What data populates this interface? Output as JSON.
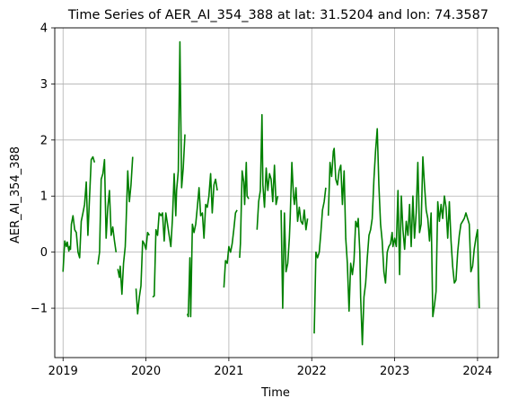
{
  "chart_data": {
    "type": "line",
    "title": "Time Series of AER_AI_354_388 at lat: 31.5204 and lon: 74.3587",
    "xlabel": "Time",
    "ylabel": "AER_AI_354_388",
    "xlim": [
      2018.9,
      2024.25
    ],
    "ylim": [
      -1.88,
      4.0
    ],
    "xticks": [
      2019,
      2020,
      2021,
      2022,
      2023,
      2024
    ],
    "yticks": [
      -1,
      0,
      1,
      2,
      3,
      4
    ],
    "xtick_labels": [
      "2019",
      "2020",
      "2021",
      "2022",
      "2023",
      "2024"
    ],
    "ytick_labels": [
      "−1",
      "0",
      "1",
      "2",
      "3",
      "4"
    ],
    "grid": true,
    "series": [
      {
        "color": "#008000",
        "segments": [
          [
            [
              2019.0,
              -0.35
            ],
            [
              2019.02,
              0.2
            ],
            [
              2019.04,
              0.1
            ],
            [
              2019.05,
              0.18
            ],
            [
              2019.07,
              0.02
            ],
            [
              2019.08,
              0.1
            ],
            [
              2019.09,
              0.05
            ],
            [
              2019.1,
              0.5
            ],
            [
              2019.12,
              0.65
            ],
            [
              2019.14,
              0.4
            ],
            [
              2019.16,
              0.35
            ],
            [
              2019.18,
              0.0
            ],
            [
              2019.2,
              -0.1
            ],
            [
              2019.22,
              0.55
            ],
            [
              2019.24,
              0.7
            ],
            [
              2019.26,
              0.85
            ],
            [
              2019.28,
              1.25
            ],
            [
              2019.3,
              0.3
            ],
            [
              2019.32,
              1.0
            ],
            [
              2019.34,
              1.65
            ],
            [
              2019.36,
              1.7
            ],
            [
              2019.38,
              1.6
            ]
          ],
          [
            [
              2019.42,
              -0.22
            ],
            [
              2019.44,
              0.0
            ],
            [
              2019.46,
              1.3
            ],
            [
              2019.48,
              1.4
            ],
            [
              2019.5,
              1.65
            ],
            [
              2019.52,
              0.25
            ],
            [
              2019.54,
              0.8
            ],
            [
              2019.56,
              1.1
            ],
            [
              2019.58,
              0.3
            ],
            [
              2019.6,
              0.45
            ],
            [
              2019.62,
              0.2
            ],
            [
              2019.64,
              0.0
            ]
          ],
          [
            [
              2019.66,
              -0.3
            ],
            [
              2019.68,
              -0.45
            ],
            [
              2019.69,
              -0.25
            ],
            [
              2019.71,
              -0.75
            ],
            [
              2019.73,
              -0.2
            ],
            [
              2019.75,
              0.1
            ],
            [
              2019.76,
              0.5
            ],
            [
              2019.78,
              1.45
            ],
            [
              2019.8,
              0.9
            ],
            [
              2019.82,
              1.2
            ],
            [
              2019.84,
              1.7
            ]
          ],
          [
            [
              2019.88,
              -0.65
            ],
            [
              2019.9,
              -1.1
            ],
            [
              2019.92,
              -0.8
            ],
            [
              2019.94,
              -0.6
            ],
            [
              2019.96,
              0.2
            ],
            [
              2019.98,
              0.15
            ],
            [
              2020.0,
              0.05
            ],
            [
              2020.02,
              0.35
            ],
            [
              2020.04,
              0.3
            ]
          ],
          [
            [
              2020.08,
              -0.8
            ],
            [
              2020.1,
              -0.78
            ],
            [
              2020.12,
              0.4
            ],
            [
              2020.14,
              0.3
            ],
            [
              2020.16,
              0.7
            ],
            [
              2020.18,
              0.65
            ],
            [
              2020.2,
              0.7
            ],
            [
              2020.22,
              0.2
            ],
            [
              2020.24,
              0.7
            ],
            [
              2020.26,
              0.5
            ],
            [
              2020.28,
              0.3
            ],
            [
              2020.3,
              0.1
            ],
            [
              2020.32,
              0.6
            ],
            [
              2020.34,
              1.4
            ],
            [
              2020.36,
              0.65
            ],
            [
              2020.37,
              1.1
            ],
            [
              2020.39,
              1.45
            ],
            [
              2020.41,
              3.75
            ],
            [
              2020.43,
              1.15
            ],
            [
              2020.45,
              1.5
            ],
            [
              2020.47,
              2.1
            ]
          ],
          [
            [
              2020.5,
              -1.1
            ],
            [
              2020.51,
              -1.15
            ],
            [
              2020.53,
              -0.1
            ],
            [
              2020.54,
              -1.15
            ],
            [
              2020.56,
              0.5
            ],
            [
              2020.58,
              0.35
            ],
            [
              2020.6,
              0.5
            ],
            [
              2020.62,
              0.8
            ],
            [
              2020.64,
              1.15
            ],
            [
              2020.66,
              0.65
            ],
            [
              2020.68,
              0.7
            ],
            [
              2020.7,
              0.25
            ],
            [
              2020.72,
              0.85
            ],
            [
              2020.74,
              0.8
            ],
            [
              2020.76,
              1.0
            ],
            [
              2020.78,
              1.4
            ],
            [
              2020.8,
              0.7
            ],
            [
              2020.82,
              1.2
            ],
            [
              2020.84,
              1.3
            ],
            [
              2020.86,
              1.1
            ]
          ],
          [
            [
              2020.94,
              -0.63
            ],
            [
              2020.96,
              -0.15
            ],
            [
              2020.98,
              -0.2
            ],
            [
              2021.0,
              0.1
            ],
            [
              2021.02,
              0.0
            ],
            [
              2021.04,
              0.15
            ],
            [
              2021.06,
              0.4
            ],
            [
              2021.08,
              0.7
            ],
            [
              2021.1,
              0.75
            ]
          ],
          [
            [
              2021.13,
              -0.1
            ],
            [
              2021.14,
              0.15
            ],
            [
              2021.16,
              1.45
            ],
            [
              2021.18,
              1.25
            ],
            [
              2021.19,
              0.85
            ],
            [
              2021.21,
              1.6
            ],
            [
              2021.22,
              1.0
            ],
            [
              2021.24,
              0.95
            ]
          ],
          [
            [
              2021.34,
              0.4
            ],
            [
              2021.36,
              0.9
            ],
            [
              2021.38,
              1.1
            ],
            [
              2021.4,
              2.45
            ],
            [
              2021.41,
              1.2
            ],
            [
              2021.43,
              0.8
            ],
            [
              2021.45,
              1.5
            ],
            [
              2021.47,
              1.1
            ],
            [
              2021.49,
              1.4
            ],
            [
              2021.51,
              1.3
            ],
            [
              2021.53,
              0.9
            ],
            [
              2021.55,
              1.55
            ],
            [
              2021.57,
              0.85
            ],
            [
              2021.59,
              1.0
            ]
          ],
          [
            [
              2021.63,
              0.75
            ],
            [
              2021.65,
              -1.0
            ],
            [
              2021.67,
              0.7
            ],
            [
              2021.69,
              -0.35
            ],
            [
              2021.71,
              -0.2
            ],
            [
              2021.73,
              0.25
            ],
            [
              2021.74,
              0.6
            ],
            [
              2021.76,
              1.6
            ],
            [
              2021.78,
              1.0
            ],
            [
              2021.79,
              0.85
            ],
            [
              2021.81,
              1.15
            ],
            [
              2021.83,
              0.55
            ],
            [
              2021.85,
              0.8
            ],
            [
              2021.87,
              0.55
            ],
            [
              2021.89,
              0.5
            ],
            [
              2021.91,
              0.75
            ],
            [
              2021.93,
              0.4
            ],
            [
              2021.95,
              0.6
            ]
          ],
          [
            [
              2022.03,
              -1.45
            ],
            [
              2022.05,
              0.0
            ],
            [
              2022.07,
              -0.1
            ],
            [
              2022.09,
              0.0
            ],
            [
              2022.11,
              0.35
            ],
            [
              2022.13,
              0.75
            ],
            [
              2022.15,
              0.9
            ],
            [
              2022.17,
              1.15
            ]
          ],
          [
            [
              2022.2,
              0.65
            ],
            [
              2022.22,
              1.6
            ],
            [
              2022.24,
              1.35
            ],
            [
              2022.26,
              1.8
            ],
            [
              2022.27,
              1.85
            ],
            [
              2022.29,
              1.3
            ],
            [
              2022.31,
              1.2
            ],
            [
              2022.33,
              1.45
            ],
            [
              2022.35,
              1.55
            ],
            [
              2022.37,
              0.85
            ],
            [
              2022.39,
              1.45
            ],
            [
              2022.41,
              0.25
            ],
            [
              2022.43,
              -0.2
            ],
            [
              2022.45,
              -1.05
            ],
            [
              2022.47,
              -0.2
            ],
            [
              2022.49,
              -0.4
            ],
            [
              2022.51,
              -0.15
            ],
            [
              2022.53,
              0.55
            ],
            [
              2022.55,
              0.45
            ],
            [
              2022.56,
              0.6
            ],
            [
              2022.58,
              0.0
            ],
            [
              2022.59,
              -0.8
            ],
            [
              2022.61,
              -1.65
            ],
            [
              2022.63,
              -0.8
            ],
            [
              2022.65,
              -0.55
            ],
            [
              2022.67,
              -0.1
            ],
            [
              2022.69,
              0.3
            ],
            [
              2022.71,
              0.4
            ],
            [
              2022.73,
              0.6
            ],
            [
              2022.75,
              1.3
            ],
            [
              2022.77,
              1.8
            ],
            [
              2022.79,
              2.2
            ],
            [
              2022.81,
              1.2
            ],
            [
              2022.83,
              0.5
            ],
            [
              2022.85,
              0.2
            ],
            [
              2022.87,
              -0.35
            ],
            [
              2022.89,
              -0.55
            ],
            [
              2022.91,
              0.0
            ],
            [
              2022.93,
              0.1
            ],
            [
              2022.95,
              0.15
            ],
            [
              2022.97,
              0.35
            ],
            [
              2022.98,
              0.1
            ],
            [
              2023.0,
              0.25
            ],
            [
              2023.02,
              0.1
            ],
            [
              2023.04,
              1.1
            ],
            [
              2023.06,
              -0.4
            ],
            [
              2023.08,
              1.0
            ],
            [
              2023.1,
              0.4
            ],
            [
              2023.12,
              0.05
            ],
            [
              2023.14,
              0.55
            ],
            [
              2023.16,
              0.3
            ],
            [
              2023.18,
              0.85
            ],
            [
              2023.2,
              0.1
            ],
            [
              2023.22,
              1.0
            ],
            [
              2023.24,
              0.25
            ],
            [
              2023.26,
              0.7
            ],
            [
              2023.28,
              1.6
            ],
            [
              2023.3,
              0.35
            ],
            [
              2023.32,
              0.5
            ],
            [
              2023.34,
              1.7
            ],
            [
              2023.36,
              1.2
            ],
            [
              2023.38,
              0.75
            ],
            [
              2023.4,
              0.6
            ],
            [
              2023.42,
              0.2
            ],
            [
              2023.44,
              0.7
            ],
            [
              2023.46,
              -1.15
            ],
            [
              2023.48,
              -0.95
            ],
            [
              2023.5,
              -0.7
            ],
            [
              2023.52,
              0.9
            ],
            [
              2023.54,
              0.55
            ],
            [
              2023.56,
              0.85
            ],
            [
              2023.58,
              0.6
            ],
            [
              2023.6,
              1.0
            ],
            [
              2023.62,
              0.8
            ],
            [
              2023.64,
              0.25
            ],
            [
              2023.66,
              0.9
            ],
            [
              2023.68,
              0.2
            ],
            [
              2023.7,
              -0.25
            ],
            [
              2023.72,
              -0.55
            ],
            [
              2023.74,
              -0.5
            ],
            [
              2023.76,
              0.0
            ],
            [
              2023.78,
              0.3
            ],
            [
              2023.8,
              0.5
            ],
            [
              2023.82,
              0.55
            ],
            [
              2023.84,
              0.6
            ],
            [
              2023.86,
              0.7
            ],
            [
              2023.88,
              0.6
            ],
            [
              2023.9,
              0.5
            ],
            [
              2023.92,
              -0.35
            ],
            [
              2023.94,
              -0.25
            ],
            [
              2023.96,
              0.05
            ],
            [
              2023.98,
              0.25
            ],
            [
              2024.0,
              0.4
            ],
            [
              2024.02,
              -1.0
            ]
          ]
        ]
      }
    ]
  }
}
